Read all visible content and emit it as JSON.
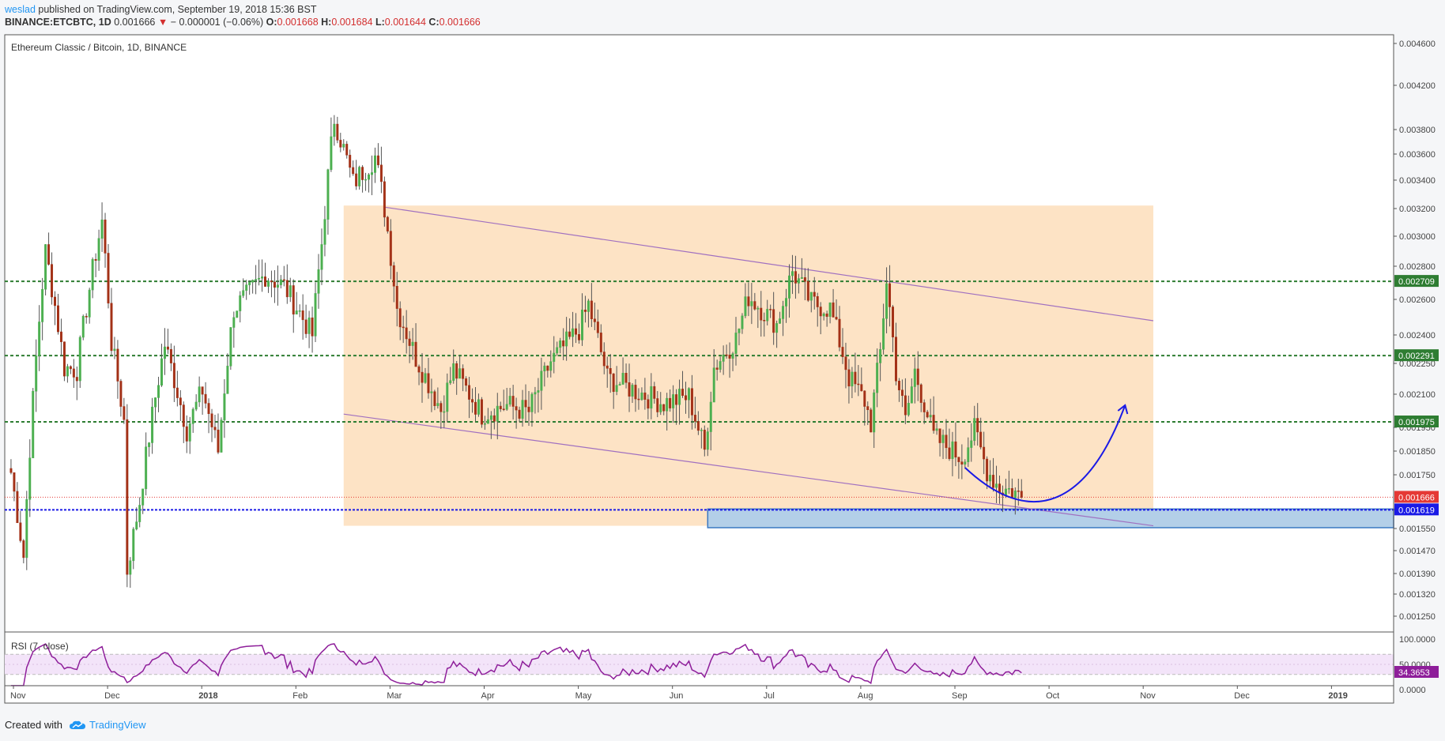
{
  "header": {
    "author": "weslad",
    "published_text": "published on TradingView.com, September 19, 2018 15:36 BST",
    "symbol": "BINANCE:ETCBTC, 1D",
    "last": "0.001666",
    "change": "− 0.000001 (−0.06%)",
    "o_label": "O:",
    "o_value": "0.001668",
    "h_label": "H:",
    "h_value": "0.001684",
    "l_label": "L:",
    "l_value": "0.001644",
    "c_label": "C:",
    "c_value": "0.001666"
  },
  "footer": {
    "created_with": "Created with",
    "brand": "TradingView"
  },
  "colors": {
    "up": "#4caf50",
    "down": "#a33117",
    "channel_fill": "#fde3c5",
    "support_zone": "#b3cfe8",
    "green_level": "#2e7d32",
    "blue_level": "#1a1ae6",
    "current_price": "#e53935",
    "rsi_line": "#8e1e9a",
    "rsi_band": "#f3e4f9",
    "curve": "#1a1ae6"
  },
  "chart_data": [
    {
      "type": "candlestick",
      "title": "Ethereum Classic / Bitcoin, 1D, BINANCE",
      "x_ticks": [
        "Nov",
        "Dec",
        "2018",
        "Feb",
        "Mar",
        "Apr",
        "May",
        "Jun",
        "Jul",
        "Aug",
        "Sep",
        "Oct",
        "Nov",
        "Dec",
        "2019"
      ],
      "y_ticks": [
        "0.004600",
        "0.004200",
        "0.003800",
        "0.003600",
        "0.003400",
        "0.003200",
        "0.003000",
        "0.002800",
        "0.002600",
        "0.002400",
        "0.002250",
        "0.002100",
        "0.001950",
        "0.001850",
        "0.001750",
        "0.001620",
        "0.001550",
        "0.001470",
        "0.001390",
        "0.001320",
        "0.001250"
      ],
      "price_labels": [
        {
          "value": "0.002709",
          "kind": "green"
        },
        {
          "value": "0.002291",
          "kind": "green"
        },
        {
          "value": "0.001975",
          "kind": "green"
        },
        {
          "value": "0.001666",
          "kind": "current"
        },
        {
          "value": "0.001619",
          "kind": "blue"
        }
      ],
      "ohlc_anchors": [
        {
          "date": "2017-11-01",
          "close": 0.00176
        },
        {
          "date": "2017-11-05",
          "close": 0.00145
        },
        {
          "date": "2017-11-12",
          "close": 0.0029
        },
        {
          "date": "2017-11-18",
          "close": 0.00223
        },
        {
          "date": "2017-11-22",
          "close": 0.00222
        },
        {
          "date": "2017-11-30",
          "close": 0.00311
        },
        {
          "date": "2017-12-03",
          "close": 0.00236
        },
        {
          "date": "2017-12-07",
          "close": 0.00198
        },
        {
          "date": "2017-12-08",
          "close": 0.0014
        },
        {
          "date": "2017-12-12",
          "close": 0.00165
        },
        {
          "date": "2017-12-20",
          "close": 0.00235
        },
        {
          "date": "2017-12-27",
          "close": 0.00194
        },
        {
          "date": "2018-01-01",
          "close": 0.00212
        },
        {
          "date": "2018-01-06",
          "close": 0.00185
        },
        {
          "date": "2018-01-11",
          "close": 0.00255
        },
        {
          "date": "2018-01-15",
          "close": 0.00262
        },
        {
          "date": "2018-01-21",
          "close": 0.00275
        },
        {
          "date": "2018-01-27",
          "close": 0.00268
        },
        {
          "date": "2018-02-05",
          "close": 0.0024
        },
        {
          "date": "2018-02-08",
          "close": 0.00295
        },
        {
          "date": "2018-02-12",
          "close": 0.0039
        },
        {
          "date": "2018-02-18",
          "close": 0.00338
        },
        {
          "date": "2018-02-25",
          "close": 0.00358
        },
        {
          "date": "2018-02-28",
          "close": 0.0032
        },
        {
          "date": "2018-03-04",
          "close": 0.00255
        },
        {
          "date": "2018-03-10",
          "close": 0.00228
        },
        {
          "date": "2018-03-18",
          "close": 0.00203
        },
        {
          "date": "2018-03-22",
          "close": 0.00222
        },
        {
          "date": "2018-03-31",
          "close": 0.00201
        },
        {
          "date": "2018-04-08",
          "close": 0.00205
        },
        {
          "date": "2018-04-15",
          "close": 0.00202
        },
        {
          "date": "2018-04-22",
          "close": 0.00226
        },
        {
          "date": "2018-05-01",
          "close": 0.00243
        },
        {
          "date": "2018-05-04",
          "close": 0.00257
        },
        {
          "date": "2018-05-10",
          "close": 0.00218
        },
        {
          "date": "2018-05-20",
          "close": 0.00211
        },
        {
          "date": "2018-05-28",
          "close": 0.00206
        },
        {
          "date": "2018-06-05",
          "close": 0.00209
        },
        {
          "date": "2018-06-10",
          "close": 0.00185
        },
        {
          "date": "2018-06-13",
          "close": 0.00223
        },
        {
          "date": "2018-06-20",
          "close": 0.00238
        },
        {
          "date": "2018-06-24",
          "close": 0.00262
        },
        {
          "date": "2018-07-03",
          "close": 0.00246
        },
        {
          "date": "2018-07-08",
          "close": 0.00277
        },
        {
          "date": "2018-07-14",
          "close": 0.00258
        },
        {
          "date": "2018-07-20",
          "close": 0.00255
        },
        {
          "date": "2018-07-26",
          "close": 0.00218
        },
        {
          "date": "2018-07-31",
          "close": 0.00207
        },
        {
          "date": "2018-08-02",
          "close": 0.00197
        },
        {
          "date": "2018-08-05",
          "close": 0.00231
        },
        {
          "date": "2018-08-07",
          "close": 0.00272
        },
        {
          "date": "2018-08-10",
          "close": 0.00221
        },
        {
          "date": "2018-08-13",
          "close": 0.00198
        },
        {
          "date": "2018-08-16",
          "close": 0.00221
        },
        {
          "date": "2018-08-22",
          "close": 0.00191
        },
        {
          "date": "2018-08-31",
          "close": 0.00182
        },
        {
          "date": "2018-09-04",
          "close": 0.00194
        },
        {
          "date": "2018-09-08",
          "close": 0.00177
        },
        {
          "date": "2018-09-12",
          "close": 0.0017
        },
        {
          "date": "2018-09-16",
          "close": 0.00169
        },
        {
          "date": "2018-09-19",
          "close": 0.001666
        }
      ],
      "drawings": {
        "channel_upper": [
          {
            "date": "2018-02-28",
            "price": 0.00321
          },
          {
            "date": "2018-10-31",
            "price": 0.00248
          }
        ],
        "channel_lower": [
          {
            "date": "2018-02-15",
            "price": 0.00201
          },
          {
            "date": "2018-10-31",
            "price": 0.00156
          }
        ],
        "channel_box": {
          "start": "2018-02-15",
          "end": "2018-10-31"
        },
        "support_zone": {
          "start": "2018-06-11",
          "end": "2019-01-20",
          "top": 0.001622,
          "bottom": 0.001553
        },
        "green_levels": [
          0.002709,
          0.002291,
          0.001975
        ],
        "blue_level": 0.001619,
        "current_level": 0.001666,
        "projection": [
          {
            "date": "2018-09-01",
            "price": 0.00178
          },
          {
            "date": "2018-09-22",
            "price": 0.00162
          },
          {
            "date": "2018-10-10",
            "price": 0.00172
          },
          {
            "date": "2018-10-22",
            "price": 0.00205
          }
        ]
      }
    },
    {
      "type": "line",
      "title": "RSI (7, close)",
      "y_ticks": [
        "100.0000",
        "50.0000",
        "0.0000"
      ],
      "current_value": "34.3653",
      "upper_band": 70,
      "lower_band": 30
    }
  ]
}
